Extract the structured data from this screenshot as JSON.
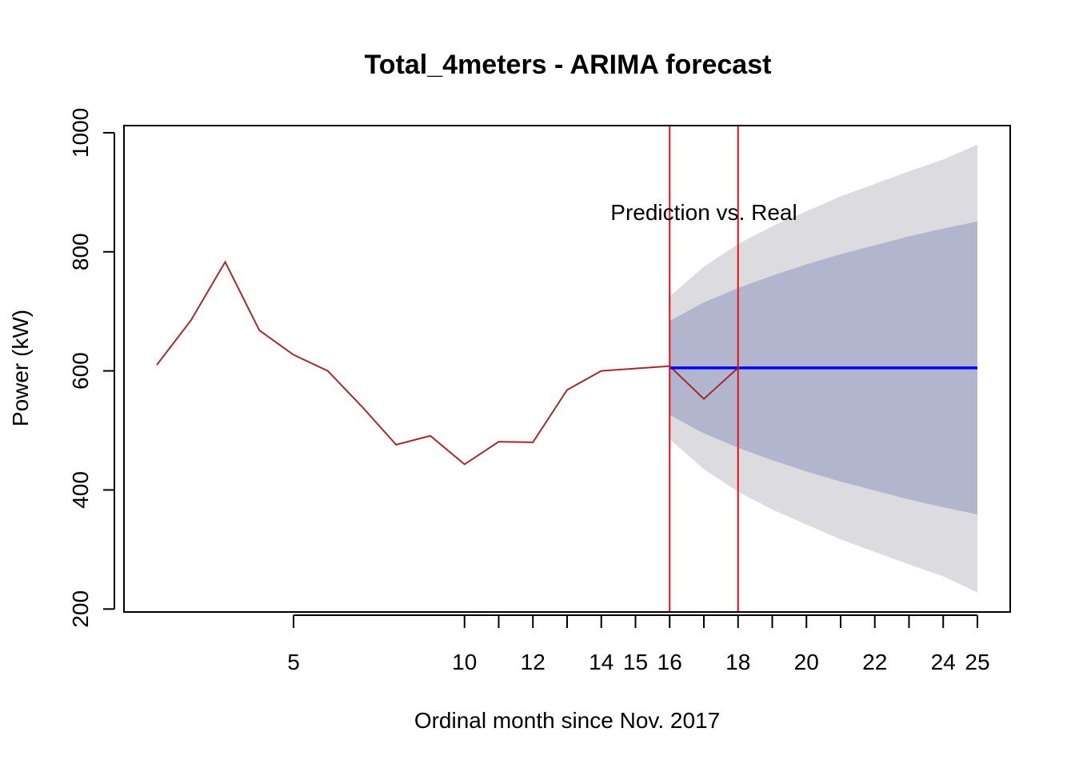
{
  "chart_data": {
    "type": "forecast",
    "title": "Total_4meters - ARIMA forecast",
    "x_label": "Ordinal month since Nov. 2017",
    "y_label": "Power (kW)",
    "annotation": {
      "text": "Prediction vs. Real",
      "x": 17,
      "y": 867
    },
    "xlim": [
      0.04,
      25.96
    ],
    "ylim": [
      195,
      1012
    ],
    "xticks": [
      5,
      10,
      12,
      14,
      15,
      16,
      18,
      20,
      22,
      24,
      25
    ],
    "xticks_unlabeled": [
      11,
      13,
      17,
      19,
      21,
      23
    ],
    "yticks": [
      200,
      400,
      600,
      800,
      1000
    ],
    "vlines": {
      "x": [
        16,
        18
      ],
      "color": "#e01010"
    },
    "history": {
      "color": "#a52a2a",
      "x": [
        1,
        2,
        3,
        4,
        5,
        6,
        7,
        8,
        9,
        10,
        11,
        12,
        13,
        14,
        15,
        16,
        17,
        18
      ],
      "values": [
        610,
        685,
        783,
        668,
        627,
        600,
        540,
        476,
        491,
        443,
        481,
        480,
        568,
        600,
        604,
        608,
        553,
        605
      ]
    },
    "forecast": {
      "x": [
        16,
        17,
        18,
        19,
        20,
        21,
        22,
        23,
        24,
        25
      ],
      "mean": {
        "color": "#0000ff",
        "values": [
          605,
          605,
          605,
          605,
          605,
          605,
          605,
          605,
          605,
          605
        ]
      },
      "band95": {
        "color": "#dbdbe0",
        "upper": [
          725,
          775,
          813,
          843,
          868,
          893,
          914,
          935,
          955,
          980
        ],
        "lower": [
          485,
          435,
          397,
          367,
          342,
          317,
          296,
          275,
          255,
          228
        ]
      },
      "band80": {
        "color": "#b1b5ce",
        "upper": [
          684,
          715,
          739,
          760,
          779,
          796,
          811,
          826,
          839,
          851
        ],
        "lower": [
          526,
          495,
          471,
          450,
          431,
          414,
          399,
          384,
          371,
          359
        ]
      }
    }
  }
}
